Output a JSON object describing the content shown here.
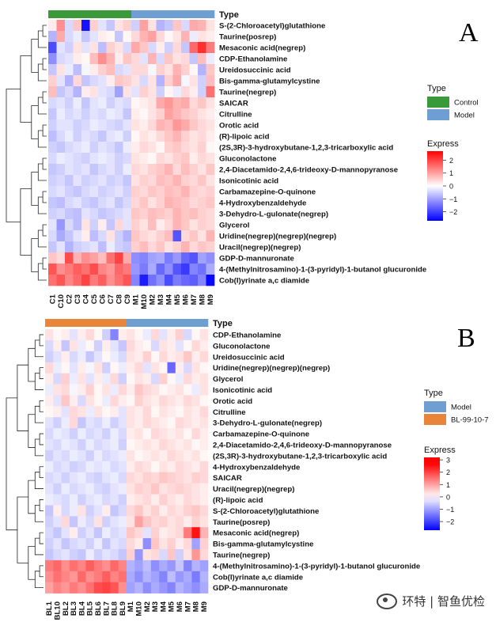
{
  "chart_data": [
    {
      "type": "heatmap",
      "panel_letter": "A",
      "type_legend_title": "Type",
      "groups": [
        {
          "name": "Control",
          "color": "#3a9a3a"
        },
        {
          "name": "Model",
          "color": "#6f9fd2"
        }
      ],
      "columns": [
        "C1",
        "C10",
        "C2",
        "C3",
        "C4",
        "C5",
        "C6",
        "C7",
        "C8",
        "C9",
        "M1",
        "M10",
        "M2",
        "M3",
        "M4",
        "M5",
        "M6",
        "M7",
        "M8",
        "M9"
      ],
      "column_groups": [
        0,
        0,
        0,
        0,
        0,
        0,
        0,
        0,
        0,
        0,
        1,
        1,
        1,
        1,
        1,
        1,
        1,
        1,
        1,
        1
      ],
      "rows": [
        "S-(2-Chloroacetyl)glutathione",
        "Taurine(posrep)",
        "Mesaconic acid(negrep)",
        "CDP-Ethanolamine",
        "Ureidosuccinic acid",
        "Bis-gamma-glutamylcystine",
        "Taurine(negrep)",
        "SAICAR",
        "Citrulline",
        "Orotic acid",
        "(R)-lipoic acid",
        "(2S,3R)-3-hydroxybutane-1,2,3-tricarboxylic acid",
        "Gluconolactone",
        "2,4-Diacetamido-2,4,6-trideoxy-D-mannopyranose",
        "Isonicotinic acid",
        "Carbamazepine-O-quinone",
        "4-Hydroxybenzaldehyde",
        "3-Dehydro-L-gulonate(negrep)",
        "Glycerol",
        "Uridine(negrep)(negrep)(negrep)",
        "Uracil(negrep)(negrep)",
        "GDP-D-mannuronate",
        "4-(Methylnitrosamino)-1-(3-pyridyl)-1-butanol glucuronide",
        "Cob(I)yrinate a,c diamide"
      ],
      "values": [
        [
          0.2,
          1.2,
          -0.4,
          0.6,
          -2.5,
          0.5,
          -0.3,
          -0.6,
          0.3,
          0.5,
          -0.5,
          1.0,
          0.3,
          -0.8,
          -0.6,
          0.6,
          -0.4,
          0.9,
          0.8,
          0.3
        ],
        [
          -0.8,
          0.9,
          -0.4,
          -0.2,
          -0.6,
          -0.3,
          0.2,
          0.1,
          -0.6,
          0.1,
          0.4,
          0.8,
          1.0,
          0.4,
          0.1,
          0.3,
          0.8,
          -0.2,
          0.3,
          0.2
        ],
        [
          -1.9,
          -0.3,
          -0.5,
          0.3,
          -0.3,
          0.3,
          -0.7,
          0.5,
          0.3,
          -0.4,
          0.9,
          0.6,
          -0.4,
          0.2,
          -0.5,
          0.4,
          -0.6,
          1.6,
          2.2,
          1.4
        ],
        [
          -1.2,
          -0.4,
          -0.3,
          0.2,
          0.1,
          0.7,
          1.2,
          0.8,
          0.2,
          0.6,
          0.4,
          -0.3,
          0.8,
          -0.4,
          0.6,
          0.3,
          0.4,
          -0.6,
          0.7,
          -0.2
        ],
        [
          -0.6,
          0.3,
          -0.2,
          -0.7,
          -0.1,
          0.2,
          0.5,
          0.7,
          -0.4,
          -0.3,
          0.4,
          0.4,
          -0.1,
          0.5,
          0.3,
          0.8,
          0.5,
          0.1,
          -0.8,
          0.6
        ],
        [
          0.5,
          -0.3,
          -0.8,
          0.4,
          -0.6,
          -0.4,
          -0.3,
          0.2,
          0.6,
          0.5,
          0.3,
          -0.4,
          0.3,
          -0.8,
          0.5,
          0.9,
          -0.1,
          0.3,
          -0.5,
          0.7
        ],
        [
          0.7,
          -0.6,
          -0.4,
          -0.8,
          0.2,
          0.3,
          -0.3,
          -0.4,
          -1.0,
          0.3,
          -0.3,
          0.5,
          0.3,
          -0.5,
          0.1,
          -0.2,
          0.4,
          0.2,
          -0.5,
          1.5
        ],
        [
          -0.4,
          -0.3,
          -0.5,
          -0.2,
          -0.6,
          -0.3,
          -0.2,
          -0.5,
          -0.3,
          -0.4,
          0.1,
          0.2,
          0.3,
          0.9,
          1.1,
          0.8,
          0.9,
          0.4,
          0.6,
          0.3
        ],
        [
          -0.6,
          -0.2,
          -0.4,
          -0.3,
          -0.5,
          -0.3,
          -0.4,
          -0.2,
          -0.3,
          -0.6,
          0.2,
          0.1,
          0.3,
          0.5,
          1.0,
          0.8,
          0.6,
          0.5,
          0.3,
          0.2
        ],
        [
          -0.5,
          -0.3,
          -0.3,
          -0.5,
          -0.4,
          -0.2,
          -0.3,
          -0.4,
          -0.5,
          -0.3,
          0.3,
          0.2,
          0.4,
          0.8,
          0.7,
          1.1,
          0.9,
          0.6,
          0.4,
          0.3
        ],
        [
          -0.7,
          -0.4,
          -0.2,
          -0.5,
          -0.3,
          -0.4,
          -0.6,
          -0.3,
          -0.2,
          -0.5,
          0.1,
          0.3,
          0.2,
          0.4,
          0.6,
          0.8,
          0.5,
          0.3,
          0.4,
          0.2
        ],
        [
          -0.5,
          -0.6,
          -0.4,
          -0.3,
          -0.2,
          -0.5,
          -0.3,
          -0.4,
          -0.6,
          -0.2,
          0.2,
          0.4,
          0.3,
          0.1,
          0.5,
          0.6,
          0.4,
          0.3,
          0.5,
          0.1
        ],
        [
          -0.4,
          -0.2,
          -0.3,
          -0.4,
          -0.5,
          -0.3,
          -0.2,
          -0.3,
          -0.5,
          -0.4,
          0.3,
          0.2,
          0.1,
          0.4,
          0.3,
          0.5,
          0.6,
          0.2,
          0.4,
          0.3
        ],
        [
          -0.6,
          -0.5,
          -0.3,
          -0.4,
          -0.3,
          -0.6,
          -0.4,
          -0.3,
          -0.5,
          -0.2,
          0.4,
          0.3,
          0.5,
          0.6,
          0.8,
          0.4,
          0.7,
          0.5,
          0.3,
          0.6
        ],
        [
          -0.5,
          -0.4,
          -0.6,
          -0.3,
          -0.5,
          -0.4,
          -0.3,
          -0.5,
          -0.4,
          -0.6,
          0.3,
          0.5,
          0.4,
          0.7,
          0.6,
          0.8,
          0.5,
          0.4,
          0.6,
          0.3
        ],
        [
          -0.4,
          -0.3,
          -0.5,
          -0.6,
          -0.4,
          -0.3,
          -0.5,
          -0.4,
          -0.3,
          -0.5,
          0.5,
          0.4,
          0.6,
          0.5,
          0.7,
          0.6,
          0.8,
          0.5,
          0.4,
          0.5
        ],
        [
          -0.6,
          -0.7,
          -0.4,
          -0.3,
          -0.5,
          -0.6,
          -0.4,
          -0.3,
          -0.6,
          -0.4,
          0.4,
          0.6,
          0.3,
          0.5,
          0.8,
          0.7,
          0.6,
          0.4,
          0.5,
          0.6
        ],
        [
          -0.5,
          -0.4,
          -0.6,
          -0.7,
          -0.3,
          -0.4,
          -0.6,
          -0.5,
          -0.4,
          -0.3,
          0.6,
          0.5,
          0.7,
          0.6,
          0.5,
          0.8,
          0.6,
          0.7,
          0.5,
          0.4
        ],
        [
          -0.3,
          -1.1,
          -0.4,
          -0.7,
          0.3,
          -0.5,
          0.2,
          -0.6,
          0.4,
          -0.3,
          0.5,
          0.3,
          0.7,
          0.2,
          0.4,
          0.8,
          0.6,
          0.3,
          0.5,
          0.4
        ],
        [
          -0.4,
          -0.9,
          -0.6,
          -0.3,
          0.2,
          -0.7,
          -0.4,
          0.3,
          -0.5,
          -0.8,
          0.6,
          0.4,
          0.3,
          0.5,
          0.7,
          -1.8,
          0.4,
          0.6,
          0.3,
          0.8
        ],
        [
          -0.6,
          -0.3,
          -0.8,
          -0.5,
          -0.4,
          -0.3,
          -0.7,
          -0.2,
          -0.5,
          -0.6,
          0.5,
          0.7,
          0.4,
          0.6,
          0.3,
          0.5,
          0.8,
          0.4,
          0.6,
          0.5
        ],
        [
          0.6,
          0.4,
          1.9,
          0.8,
          1.2,
          1.0,
          0.7,
          1.5,
          2.0,
          0.9,
          -1.2,
          -1.3,
          -1.0,
          -0.9,
          -1.4,
          -1.1,
          -1.6,
          -1.8,
          -1.0,
          -1.2
        ],
        [
          1.8,
          1.2,
          1.4,
          1.7,
          1.5,
          1.9,
          1.3,
          1.1,
          1.6,
          1.4,
          -1.1,
          -1.4,
          -0.9,
          -1.6,
          -1.2,
          -1.8,
          -2.1,
          -1.3,
          -1.5,
          -0.9
        ],
        [
          1.5,
          1.8,
          1.3,
          1.6,
          2.0,
          1.4,
          1.7,
          1.2,
          1.5,
          1.8,
          -1.3,
          -2.4,
          -1.5,
          -1.2,
          -1.9,
          -1.4,
          -1.6,
          -1.7,
          -1.3,
          -2.6
        ]
      ],
      "express_legend": {
        "title": "Express",
        "ticks": [
          2,
          1,
          0,
          -1,
          -2
        ],
        "min": -2.7,
        "max": 2.7
      }
    },
    {
      "type": "heatmap",
      "panel_letter": "B",
      "type_legend_title": "Type",
      "groups": [
        {
          "name": "Model",
          "color": "#6f9fd2"
        },
        {
          "name": "BL-99-10-7",
          "color": "#e8853a"
        }
      ],
      "columns": [
        "BL1",
        "BL10",
        "BL2",
        "BL3",
        "BL4",
        "BL5",
        "BL6",
        "BL7",
        "BL8",
        "BL9",
        "M1",
        "M10",
        "M2",
        "M3",
        "M4",
        "M5",
        "M6",
        "M7",
        "M8",
        "M9"
      ],
      "column_groups": [
        1,
        1,
        1,
        1,
        1,
        1,
        1,
        1,
        1,
        1,
        0,
        0,
        0,
        0,
        0,
        0,
        0,
        0,
        0,
        0
      ],
      "rows": [
        "CDP-Ethanolamine",
        "Gluconolactone",
        "Ureidosuccinic acid",
        "Uridine(negrep)(negrep)(negrep)",
        "Glycerol",
        "Isonicotinic acid",
        "Orotic acid",
        "Citrulline",
        "3-Dehydro-L-gulonate(negrep)",
        "Carbamazepine-O-quinone",
        "2,4-Diacetamido-2,4,6-trideoxy-D-mannopyranose",
        "(2S,3R)-3-hydroxybutane-1,2,3-tricarboxylic acid",
        "4-Hydroxybenzaldehyde",
        "SAICAR",
        "Uracil(negrep)(negrep)",
        "(R)-lipoic acid",
        "S-(2-Chloroacetyl)glutathione",
        "Taurine(posrep)",
        "Mesaconic acid(negrep)",
        "Bis-gamma-glutamylcystine",
        "Taurine(negrep)",
        "4-(Methylnitrosamino)-1-(3-pyridyl)-1-butanol glucuronide",
        "Cob(I)yrinate a,c diamide",
        "GDP-D-mannuronate"
      ],
      "values": [
        [
          0.3,
          0.1,
          0.2,
          -0.3,
          0.2,
          0.4,
          0.1,
          -0.5,
          -1.3,
          0.2,
          0.3,
          0.1,
          -0.2,
          0.4,
          -0.3,
          0.2,
          0.5,
          -0.4,
          0.1,
          0.3
        ],
        [
          -0.4,
          0.2,
          -0.6,
          0.3,
          -0.2,
          0.1,
          -0.5,
          0.2,
          -0.3,
          -0.6,
          0.4,
          0.2,
          0.1,
          -0.4,
          0.3,
          0.2,
          -0.3,
          0.1,
          0.4,
          0.2
        ],
        [
          -0.5,
          -0.3,
          0.2,
          -0.4,
          -0.2,
          -0.6,
          -0.3,
          0.1,
          -0.2,
          -0.4,
          0.3,
          0.2,
          0.5,
          0.1,
          0.4,
          0.2,
          0.3,
          0.6,
          0.2,
          0.4
        ],
        [
          0.4,
          -0.2,
          0.1,
          -0.3,
          0.2,
          -0.1,
          0.3,
          -0.5,
          0.1,
          -0.2,
          0.2,
          0.4,
          -0.3,
          0.3,
          0.1,
          -1.6,
          0.2,
          -0.4,
          0.3,
          0.1
        ],
        [
          0.2,
          -0.4,
          0.5,
          -0.2,
          0.3,
          -0.3,
          0.2,
          -0.2,
          0.4,
          -0.5,
          0.1,
          0.3,
          0.2,
          -0.4,
          0.5,
          0.1,
          -0.2,
          0.4,
          0.2,
          0.3
        ],
        [
          -0.2,
          0.3,
          0.4,
          -0.1,
          0.2,
          0.5,
          0.1,
          0.3,
          -0.2,
          0.4,
          0.2,
          0.6,
          0.4,
          0.3,
          0.1,
          0.2,
          0.3,
          0.1,
          -0.2,
          0.3
        ],
        [
          0.2,
          -0.3,
          0.6,
          0.2,
          -0.4,
          0.3,
          0.1,
          -0.2,
          0.4,
          0.2,
          0.1,
          0.5,
          0.3,
          0.2,
          0.4,
          0.3,
          0.2,
          0.4,
          0.3,
          0.1
        ],
        [
          0.1,
          0.2,
          -0.3,
          0.4,
          0.3,
          -0.2,
          0.3,
          0.1,
          0.2,
          -0.3,
          0.3,
          0.2,
          0.4,
          0.1,
          0.3,
          0.2,
          0.1,
          0.3,
          0.2,
          0.4
        ],
        [
          -0.3,
          -0.5,
          -0.2,
          0.4,
          -0.6,
          -0.3,
          -0.4,
          -0.2,
          -0.5,
          -0.3,
          0.3,
          0.2,
          0.4,
          0.3,
          0.2,
          0.1,
          0.4,
          0.3,
          0.2,
          0.3
        ],
        [
          -0.4,
          -0.2,
          -0.3,
          -0.5,
          -0.2,
          -0.4,
          -0.3,
          -0.5,
          -0.2,
          -0.4,
          0.2,
          0.3,
          0.1,
          0.4,
          0.3,
          0.2,
          0.3,
          0.1,
          0.4,
          0.2
        ],
        [
          -0.3,
          -0.4,
          -0.2,
          -0.3,
          -0.5,
          -0.2,
          -0.4,
          -0.3,
          -0.2,
          -0.5,
          0.1,
          0.2,
          0.3,
          0.2,
          0.4,
          0.3,
          0.2,
          0.3,
          0.1,
          0.2
        ],
        [
          -0.5,
          -0.3,
          -0.4,
          -0.2,
          -0.3,
          -0.5,
          -0.2,
          -0.4,
          -0.3,
          -0.2,
          0.3,
          0.1,
          0.2,
          0.3,
          0.2,
          0.4,
          0.3,
          0.2,
          0.3,
          0.1
        ],
        [
          -0.2,
          -0.4,
          -0.3,
          -0.5,
          -0.4,
          -0.2,
          -0.3,
          -0.2,
          -0.4,
          -0.3,
          0.2,
          0.4,
          0.3,
          0.1,
          0.3,
          0.2,
          0.4,
          0.3,
          0.2,
          0.4
        ],
        [
          -0.4,
          -0.3,
          -0.5,
          -0.3,
          -0.2,
          -0.4,
          -0.5,
          -0.3,
          -0.2,
          -0.4,
          0.4,
          0.3,
          0.5,
          0.4,
          0.6,
          0.5,
          0.4,
          0.3,
          0.5,
          0.4
        ],
        [
          -0.3,
          -0.5,
          -0.2,
          -0.4,
          -0.3,
          -0.2,
          -0.4,
          -0.5,
          -0.3,
          -0.2,
          0.3,
          0.5,
          0.4,
          0.6,
          0.3,
          0.4,
          0.5,
          0.4,
          0.3,
          0.2
        ],
        [
          -0.2,
          -0.3,
          -0.4,
          -0.2,
          -0.5,
          -0.3,
          -0.2,
          -0.4,
          -0.3,
          -0.5,
          0.2,
          0.3,
          0.4,
          0.2,
          0.5,
          0.3,
          0.2,
          0.4,
          0.3,
          0.2
        ],
        [
          -0.6,
          0.2,
          -0.4,
          -0.2,
          0.3,
          -0.5,
          -0.3,
          0.2,
          -0.6,
          -0.4,
          0.4,
          0.6,
          0.3,
          0.5,
          0.2,
          0.4,
          0.3,
          0.5,
          0.6,
          0.4
        ],
        [
          -0.5,
          -0.3,
          0.4,
          -0.6,
          -0.2,
          -0.4,
          0.3,
          -0.5,
          -0.3,
          -0.2,
          0.3,
          1.0,
          0.6,
          0.4,
          0.5,
          0.3,
          0.4,
          0.2,
          0.5,
          0.3
        ],
        [
          -0.4,
          -0.6,
          -0.3,
          0.2,
          -0.5,
          -0.3,
          -0.6,
          -0.2,
          -0.4,
          -0.3,
          0.6,
          0.4,
          -0.3,
          0.5,
          0.2,
          0.3,
          0.4,
          1.4,
          2.5,
          0.8
        ],
        [
          -0.5,
          -0.3,
          -0.6,
          -0.4,
          -0.3,
          -0.5,
          -0.2,
          -0.6,
          -0.3,
          -0.4,
          0.4,
          0.2,
          -1.2,
          0.6,
          0.3,
          0.5,
          0.2,
          0.4,
          -1.0,
          0.5
        ],
        [
          -0.6,
          -0.4,
          -0.3,
          -0.5,
          -0.6,
          -0.2,
          -0.5,
          -0.3,
          -0.4,
          -0.6,
          0.5,
          -1.1,
          0.3,
          0.4,
          -0.4,
          0.6,
          -0.5,
          0.3,
          1.1,
          0.4
        ],
        [
          1.4,
          1.6,
          1.2,
          1.5,
          1.3,
          1.7,
          1.4,
          1.2,
          1.6,
          1.3,
          -0.8,
          -1.0,
          -0.7,
          -1.2,
          -0.9,
          -1.1,
          -0.6,
          -1.3,
          -0.8,
          -1.0
        ],
        [
          1.2,
          1.5,
          1.3,
          1.1,
          1.6,
          1.2,
          1.4,
          1.7,
          1.3,
          1.5,
          -0.9,
          -1.2,
          -0.8,
          -1.0,
          -1.3,
          -0.7,
          -1.1,
          -0.9,
          -1.4,
          -0.8
        ],
        [
          1.0,
          1.3,
          1.1,
          1.4,
          1.2,
          1.5,
          1.9,
          2.0,
          1.8,
          1.2,
          -1.0,
          -0.8,
          -1.2,
          -0.9,
          -1.1,
          -1.3,
          -0.8,
          -1.0,
          -1.2,
          -0.9
        ]
      ],
      "express_legend": {
        "title": "Express",
        "ticks": [
          3,
          2,
          1,
          0,
          -1,
          -2
        ],
        "min": -2.7,
        "max": 3.2
      }
    }
  ],
  "watermark": {
    "text": "环特 | 智鱼优检",
    "logo": "wechat-logo-icon"
  }
}
